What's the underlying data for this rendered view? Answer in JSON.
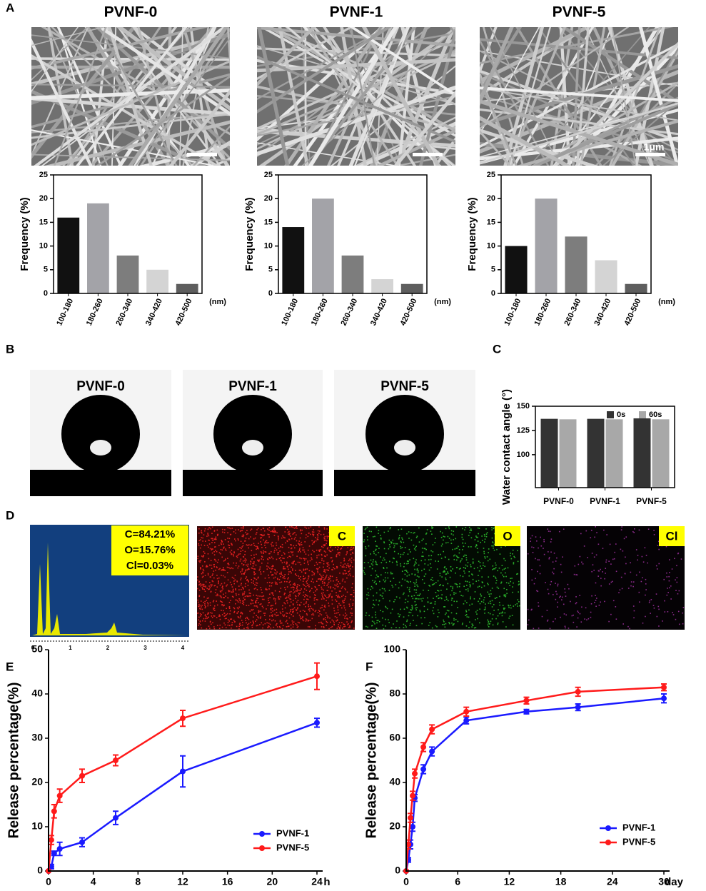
{
  "figure": {
    "panel_labels": [
      "A",
      "B",
      "C",
      "D",
      "E",
      "F"
    ],
    "scale_bar": "1μm",
    "droplet_titles": [
      "PVNF-0",
      "PVNF-1",
      "PVNF-5"
    ],
    "eds_composition": [
      "C=84.21%",
      "O=15.76%",
      "Cl=0.03%"
    ],
    "eds_maps": [
      "C",
      "O",
      "Cl"
    ],
    "spectrum_axis": [
      0,
      1,
      2,
      3,
      4
    ]
  },
  "chart_data": [
    {
      "type": "bar",
      "title": "PVNF-0",
      "y_label": "Frequency (%)",
      "x_unit": "(nm)",
      "categories": [
        "100-180",
        "180-260",
        "260-340",
        "340-420",
        "420-500"
      ],
      "values": [
        16,
        19,
        8,
        5,
        2
      ],
      "colors": [
        "#111111",
        "#a3a3a8",
        "#7d7d7d",
        "#d4d4d4",
        "#5e5e5e"
      ],
      "ylim": [
        0,
        25
      ],
      "yticks": [
        0,
        5,
        10,
        15,
        20,
        25
      ]
    },
    {
      "type": "bar",
      "title": "PVNF-1",
      "y_label": "Frequency (%)",
      "x_unit": "(nm)",
      "categories": [
        "100-180",
        "180-260",
        "260-340",
        "340-420",
        "420-500"
      ],
      "values": [
        14,
        20,
        8,
        3,
        2
      ],
      "colors": [
        "#111111",
        "#a3a3a8",
        "#7d7d7d",
        "#d4d4d4",
        "#5e5e5e"
      ],
      "ylim": [
        0,
        25
      ],
      "yticks": [
        0,
        5,
        10,
        15,
        20,
        25
      ]
    },
    {
      "type": "bar",
      "title": "PVNF-5",
      "y_label": "Frequency (%)",
      "x_unit": "(nm)",
      "categories": [
        "100-180",
        "180-260",
        "260-340",
        "340-420",
        "420-500"
      ],
      "values": [
        10,
        20,
        12,
        7,
        2
      ],
      "colors": [
        "#111111",
        "#a3a3a8",
        "#7d7d7d",
        "#d4d4d4",
        "#5e5e5e"
      ],
      "ylim": [
        0,
        25
      ],
      "yticks": [
        0,
        5,
        10,
        15,
        20,
        25
      ]
    },
    {
      "type": "bar",
      "y_label": "Water contact angle (°)",
      "categories": [
        "PVNF-0",
        "PVNF-1",
        "PVNF-5"
      ],
      "series": [
        {
          "name": "0s",
          "color": "#333333",
          "values": [
            137,
            137,
            137.5
          ]
        },
        {
          "name": "60s",
          "color": "#a8a8a8",
          "values": [
            136.5,
            136.5,
            136.5
          ]
        }
      ],
      "ylim": [
        66,
        150
      ],
      "yticks": [
        100,
        125,
        150
      ]
    },
    {
      "type": "line",
      "y_label": "Release percentage(%)",
      "x_unit": "h",
      "x": [
        0,
        0.25,
        0.5,
        1,
        3,
        6,
        12,
        24
      ],
      "series": [
        {
          "name": "PVNF-1",
          "color": "#1a1aff",
          "values": [
            0,
            1,
            4,
            5,
            6.5,
            12,
            22.5,
            33.5
          ],
          "errors": [
            0,
            0.5,
            0.5,
            1.5,
            1,
            1.5,
            3.5,
            1
          ]
        },
        {
          "name": "PVNF-5",
          "color": "#ff1a1a",
          "values": [
            0,
            7,
            13.5,
            17,
            21.5,
            25,
            34.5,
            44
          ],
          "errors": [
            0,
            1,
            1.5,
            1.5,
            1.5,
            1.2,
            1.8,
            3
          ]
        }
      ],
      "xlim": [
        0,
        24
      ],
      "xticks": [
        0,
        4,
        8,
        12,
        16,
        20,
        24
      ],
      "ylim": [
        0,
        50
      ],
      "yticks": [
        0,
        10,
        20,
        30,
        40,
        50
      ]
    },
    {
      "type": "line",
      "y_label": "Release percentage(%)",
      "x_unit": "day",
      "x": [
        0,
        0.25,
        0.5,
        0.75,
        1,
        2,
        3,
        7,
        14,
        20,
        30
      ],
      "series": [
        {
          "name": "PVNF-1",
          "color": "#1a1aff",
          "values": [
            0,
            5,
            12,
            20,
            33,
            46,
            54,
            68,
            72,
            74,
            78
          ],
          "errors": [
            0,
            1,
            2,
            2,
            1.5,
            2,
            2,
            1.5,
            1,
            1.5,
            2
          ]
        },
        {
          "name": "PVNF-5",
          "color": "#ff1a1a",
          "values": [
            0,
            12,
            24,
            34,
            44,
            56,
            64,
            72,
            77,
            81,
            83
          ],
          "errors": [
            0,
            2,
            2,
            2,
            2,
            2,
            2,
            2,
            1.5,
            2,
            1.5
          ]
        }
      ],
      "xlim": [
        0,
        30
      ],
      "xticks": [
        0,
        6,
        12,
        18,
        24,
        30
      ],
      "ylim": [
        0,
        100
      ],
      "yticks": [
        0,
        20,
        40,
        60,
        80,
        100
      ]
    }
  ]
}
